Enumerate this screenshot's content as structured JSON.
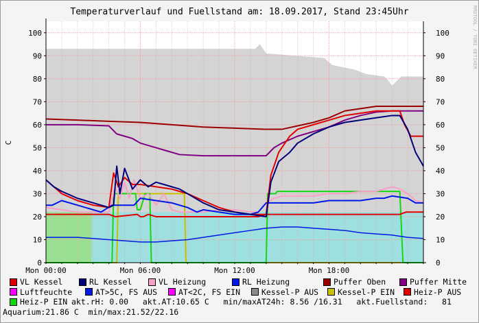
{
  "title": "Temperaturverlauf und Fuellstand am: 18.09.2017, Stand 23:45Uhr",
  "watermark": "RRDTOOL / TOBI OETIKER",
  "chart_data": {
    "type": "line",
    "title": "Temperaturverlauf und Fuellstand am: 18.09.2017, Stand 23:45Uhr",
    "ylabel": "C",
    "ylim": [
      0,
      105
    ],
    "yticks": [
      0,
      10,
      20,
      30,
      40,
      50,
      60,
      70,
      80,
      90,
      100
    ],
    "xlim": [
      0,
      24
    ],
    "xticks": [
      {
        "x": 0,
        "label": "Mon 00:00"
      },
      {
        "x": 6,
        "label": "Mon 06:00"
      },
      {
        "x": 12,
        "label": "Mon 12:00"
      },
      {
        "x": 18,
        "label": "Mon 18:00"
      }
    ],
    "grid": true,
    "colors": {
      "fill_level": "#d4d4d4",
      "outside_above_5": "#9ee0e0",
      "humidity": "#9ae092",
      "vl_kessel": "#e00000",
      "rl_kessel": "#00007a",
      "vl_heizung": "#f7a0c8",
      "rl_heizung": "#0018e6",
      "puffer_oben": "#9a0000",
      "puffer_mitte": "#800080",
      "heiz_p_ein": "#12d812",
      "kessel_p_ein": "#c8c000",
      "gridline": "#f0a0a0"
    },
    "series": [
      {
        "name": "Fuellstand",
        "x": [
          0,
          9.0,
          13.3,
          13.6,
          14.0,
          17.7,
          18.2,
          19.6,
          20.4,
          21.5,
          21.8,
          22.0,
          22.6,
          24.0
        ],
        "y": [
          93,
          93,
          93,
          95,
          91,
          89,
          86,
          84,
          82,
          81,
          79,
          77,
          81,
          81
        ]
      },
      {
        "name": "RL Heizung",
        "x": [
          0,
          0.4,
          1,
          2,
          3,
          3.5,
          4.2,
          5,
          5.6,
          6,
          7,
          8,
          9,
          9.6,
          10,
          11,
          12,
          13,
          13.5,
          14,
          15,
          16,
          17,
          18,
          18.5,
          19,
          20,
          21,
          21.5,
          22,
          23,
          23.5,
          24
        ],
        "y": [
          25,
          25,
          27,
          25,
          23,
          22,
          25,
          25,
          25,
          28,
          27,
          26,
          24,
          22,
          23,
          22,
          21,
          21,
          22,
          26,
          26,
          26,
          26,
          27,
          27,
          27,
          27,
          28,
          28,
          29,
          28,
          26,
          26
        ]
      },
      {
        "name": "Puffer Oben",
        "x": [
          0,
          2,
          4,
          6,
          8,
          10,
          12,
          14,
          15,
          17,
          18,
          19,
          20,
          21,
          21.5,
          22,
          23,
          24
        ],
        "y": [
          62.5,
          62,
          61.5,
          61,
          60,
          59,
          58.5,
          58,
          58,
          61,
          63,
          66,
          67,
          68,
          68,
          68,
          68,
          68
        ]
      },
      {
        "name": "Puffer Mitte",
        "x": [
          0,
          2,
          4,
          4.5,
          5,
          5.5,
          6,
          6.5,
          7.5,
          8.5,
          10,
          12,
          14,
          14.5,
          15,
          16,
          18,
          19,
          20,
          21,
          22,
          23,
          24
        ],
        "y": [
          60,
          60,
          59.5,
          56,
          55,
          54,
          52,
          51,
          49,
          47,
          46.5,
          46.5,
          46.5,
          50,
          52,
          55,
          59,
          62,
          64,
          65.5,
          66,
          66,
          66
        ]
      },
      {
        "name": "RL Kessel",
        "x": [
          0,
          0.5,
          1,
          2,
          3,
          4,
          4.3,
          4.5,
          4.7,
          5.0,
          5.5,
          6.0,
          6.5,
          7.0,
          7.5,
          8.0,
          8.5,
          9.0,
          10,
          11,
          12,
          13,
          14,
          14.3,
          14.8,
          15.5,
          16,
          17,
          18,
          19,
          20,
          21,
          22,
          22.5,
          23.0,
          23.5,
          24
        ],
        "y": [
          36,
          33,
          31,
          28,
          26,
          24,
          25,
          42,
          30,
          41,
          32,
          36,
          33,
          35,
          34,
          33,
          32,
          30,
          26,
          23,
          22,
          21,
          20,
          35,
          44,
          48,
          52,
          56,
          59,
          61,
          62,
          63,
          64,
          64,
          58,
          48,
          42
        ]
      },
      {
        "name": "VL Kessel",
        "x": [
          0,
          0.5,
          1,
          2,
          3,
          4,
          4.3,
          4.6,
          5.0,
          5.5,
          6.0,
          7.0,
          8.0,
          9.0,
          10,
          11,
          12,
          13,
          14,
          14.3,
          14.8,
          15.5,
          16,
          17,
          18,
          19,
          20,
          21,
          22,
          22.5,
          22.8,
          23.2,
          24
        ],
        "y": [
          36,
          33,
          30,
          27,
          25,
          24,
          39,
          33,
          37,
          34,
          34,
          33,
          32,
          30,
          27,
          24,
          22,
          21,
          21,
          38,
          48,
          55,
          58,
          60,
          62,
          64,
          65,
          66,
          66,
          66,
          60,
          55,
          55
        ]
      },
      {
        "name": "VL Heizung",
        "x": [
          0,
          1,
          2,
          3,
          4,
          4.4,
          4.7,
          5,
          5.3,
          5.6,
          6,
          6.5,
          7,
          7.5,
          8,
          8.5,
          9,
          10,
          11,
          12,
          13,
          13.5,
          14,
          14.5,
          15,
          16,
          17,
          18,
          19,
          20,
          21,
          21.5,
          22,
          22.5,
          23,
          23.5,
          24
        ],
        "y": [
          24,
          23,
          22,
          22,
          22,
          33,
          28,
          35,
          28,
          36,
          28,
          30,
          25,
          30,
          23,
          22,
          22,
          22,
          23,
          23,
          22,
          22,
          26,
          28,
          29,
          29,
          29,
          30,
          30,
          31,
          31,
          32,
          33,
          32,
          30,
          27,
          26
        ]
      },
      {
        "name": "Heiz-P EIN",
        "x": [
          0,
          4.2,
          4.3,
          5.7,
          5.8,
          6.0,
          6.3,
          6.6,
          6.7,
          14.0,
          14.1,
          14.6,
          14.7,
          22.5,
          22.7,
          24
        ],
        "y": [
          0,
          0,
          30,
          30,
          23,
          23,
          30,
          30,
          0,
          0,
          30,
          30,
          31,
          31,
          0,
          0
        ]
      },
      {
        "name": "Kessel-P EIN",
        "x": [
          0,
          4.5,
          4.6,
          8.8,
          8.9,
          24
        ],
        "y": [
          0,
          0,
          30,
          30,
          0,
          0
        ]
      },
      {
        "name": "Heiz-P AUS",
        "x": [
          0,
          4.0,
          4.4,
          5.8,
          6.0,
          6.2,
          6.5,
          7.0,
          8.0,
          9.0,
          10,
          12,
          13.5,
          14.0,
          22.5,
          22.9,
          24
        ],
        "y": [
          21,
          21,
          20,
          21,
          20,
          20,
          21,
          20,
          20,
          20,
          20,
          20,
          20,
          21,
          21,
          22,
          22
        ]
      },
      {
        "name": "AT>5C, FS AUS",
        "x": [
          0,
          1,
          2,
          3,
          4,
          5,
          6,
          7,
          8,
          9,
          10,
          11,
          12,
          13,
          14,
          15,
          16,
          17,
          18,
          19,
          20,
          21,
          22,
          23,
          24
        ],
        "y": [
          11,
          11,
          11,
          10.5,
          10,
          9.5,
          9,
          9,
          9.5,
          10,
          11,
          12,
          13,
          14,
          15,
          15.5,
          15.5,
          15,
          14.5,
          14,
          13,
          12.5,
          12,
          11,
          10.5
        ]
      },
      {
        "name": "Luftfeuchte",
        "x": [
          0,
          2.9
        ],
        "y": [
          22,
          22
        ]
      }
    ]
  },
  "legend": {
    "rows": [
      [
        {
          "label": "VL Kessel",
          "color": "#e00000"
        },
        {
          "label": "RL Kessel",
          "color": "#00007a"
        },
        {
          "label": "VL Heizung",
          "color": "#f7a0c8"
        },
        {
          "label": "RL Heizung",
          "color": "#0018e6"
        },
        {
          "label": "Puffer Oben",
          "color": "#9a0000"
        },
        {
          "label": "Puffer Mitte",
          "color": "#800080"
        }
      ],
      [
        {
          "label": "Luftfeuchte",
          "color": "#ff00ff"
        },
        {
          "label": "AT>5C, FS AUS",
          "color": "#0018e6"
        },
        {
          "label": "AT<2C, FS EIN",
          "color": "#ff00ff"
        },
        {
          "label": "Kessel-P AUS",
          "color": "#8a8a8a"
        },
        {
          "label": "Kessel-P EIN",
          "color": "#c8c000"
        },
        {
          "label": "Heiz-P AUS",
          "color": "#e00000"
        }
      ]
    ],
    "row3": {
      "label": "Heiz-P EIN",
      "color": "#12d812",
      "info": "akt.rH: 0.00   akt.AT:10.65 C   min/maxAT24h: 8.56 /16.31   akt.Fuellstand:   81"
    },
    "row4": "Aquarium:21.86 C  min/max:21.52/22.16"
  }
}
